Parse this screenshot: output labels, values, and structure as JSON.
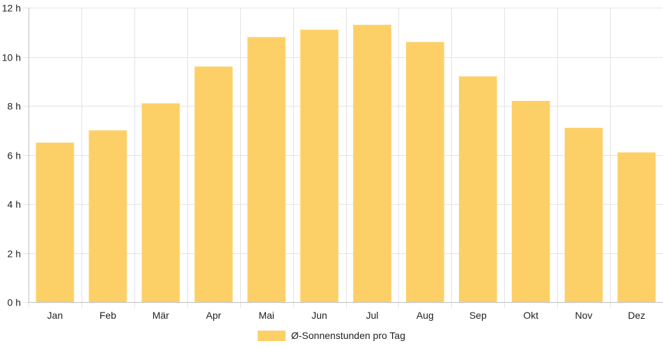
{
  "chart_data": {
    "type": "bar",
    "categories": [
      "Jan",
      "Feb",
      "Mär",
      "Apr",
      "Mai",
      "Jun",
      "Jul",
      "Aug",
      "Sep",
      "Okt",
      "Nov",
      "Dez"
    ],
    "series": [
      {
        "name": "Ø-Sonnenstunden pro Tag",
        "values": [
          6.5,
          7.0,
          8.1,
          9.6,
          10.8,
          11.1,
          11.3,
          10.6,
          9.2,
          8.2,
          7.1,
          6.1
        ],
        "color": "#fdd067"
      }
    ],
    "ylim": [
      0,
      12
    ],
    "y_ticks": [
      "0 h",
      "2 h",
      "4 h",
      "6 h",
      "8 h",
      "10 h",
      "12 h"
    ],
    "grid": true,
    "legend_position": "bottom"
  }
}
